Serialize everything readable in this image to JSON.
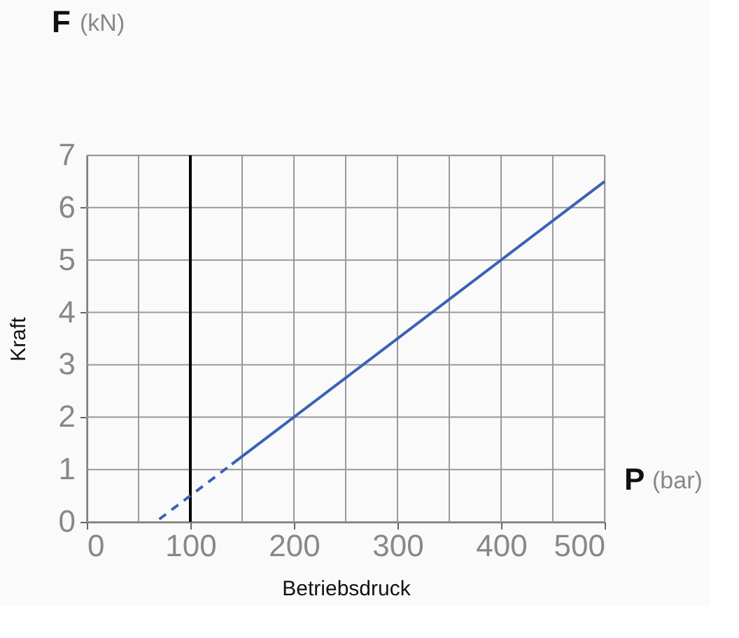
{
  "chart_data": {
    "type": "line",
    "xlabel": "Betriebsdruck",
    "ylabel": "Kraft",
    "annotations": [
      "F (kN)",
      "P (bar)"
    ],
    "series": [
      {
        "color": "#3a62b5",
        "line_style": "dashed",
        "x": [
          70,
          140
        ],
        "values": [
          0.05,
          1.1
        ]
      },
      {
        "color": "#3a62b5",
        "line_style": "solid",
        "x": [
          140,
          500
        ],
        "values": [
          1.1,
          6.5
        ]
      }
    ],
    "ref_lines": [
      {
        "axis": "x",
        "value": 100,
        "color": "#000000",
        "line_style": "solid"
      }
    ],
    "xlim": [
      0,
      500
    ],
    "ylim": [
      0,
      7
    ],
    "xticks": [
      0,
      {
        "value": 50,
        "label": null
      },
      100,
      {
        "value": 150,
        "label": null
      },
      200,
      {
        "value": 250,
        "label": null
      },
      300,
      {
        "value": 350,
        "label": null
      },
      400,
      {
        "value": 450,
        "label": null
      },
      500
    ],
    "yticks": [
      0,
      1,
      2,
      3,
      4,
      5,
      6,
      7
    ],
    "grid": true,
    "marker": "none"
  }
}
